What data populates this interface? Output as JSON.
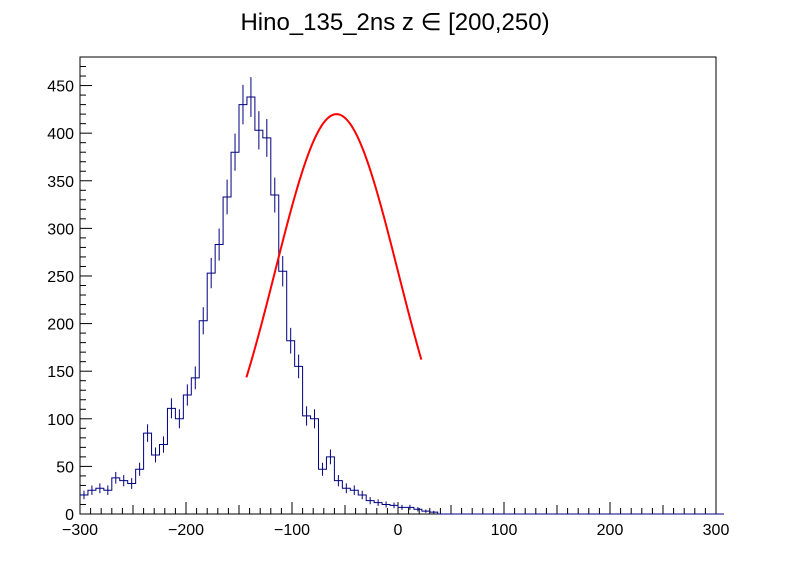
{
  "chart_data": {
    "type": "histogram",
    "title": "Hino_135_2ns z  ∈ [200,250)",
    "xlim": [
      -300,
      300
    ],
    "ylim": [
      0,
      480
    ],
    "x_ticks": [
      -300,
      -200,
      -100,
      0,
      100,
      200,
      300
    ],
    "y_ticks": [
      0,
      50,
      100,
      150,
      200,
      250,
      300,
      350,
      400,
      450
    ],
    "bin_width": 7.5,
    "bin_start": -300,
    "series": [
      {
        "kind": "histogram",
        "color": "#000080",
        "counts": [
          20,
          25,
          27,
          25,
          38,
          35,
          32,
          47,
          85,
          62,
          73,
          111,
          100,
          125,
          143,
          203,
          253,
          283,
          333,
          380,
          430,
          438,
          403,
          395,
          335,
          255,
          182,
          155,
          103,
          100,
          47,
          60,
          35,
          27,
          25,
          20,
          14,
          12,
          10,
          9,
          7,
          7,
          5,
          3,
          2,
          0,
          0,
          0,
          0,
          0,
          0,
          0,
          0,
          0,
          0,
          0,
          0,
          0,
          0,
          0,
          0,
          0,
          0,
          0,
          0,
          0,
          0,
          0,
          0,
          0,
          0,
          0,
          0,
          0,
          0,
          0,
          0,
          0,
          0,
          0,
          0
        ]
      },
      {
        "kind": "fit",
        "color": "#ff0000",
        "function": "gaus",
        "amplitude": 420,
        "mean": -58,
        "sigma": 58,
        "range": [
          -143,
          22
        ]
      }
    ]
  }
}
